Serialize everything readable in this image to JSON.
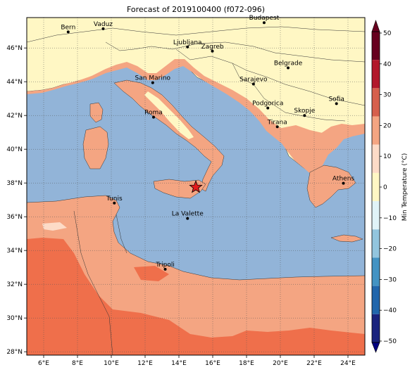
{
  "title": "Forecast of 2019100400 (f072-096)",
  "map": {
    "lon_range": [
      5,
      25
    ],
    "lat_range": [
      27.8,
      47.8
    ],
    "lon_ticks": [
      "6°E",
      "8°E",
      "10°E",
      "12°E",
      "14°E",
      "16°E",
      "18°E",
      "20°E",
      "22°E",
      "24°E"
    ],
    "lat_ticks": [
      "28°N",
      "30°N",
      "32°N",
      "34°N",
      "36°N",
      "38°N",
      "40°N",
      "42°N",
      "44°N",
      "46°N"
    ],
    "grid": true,
    "marker": {
      "name": "star",
      "lon": 15.0,
      "lat": 37.75,
      "color": "#e31a1c"
    },
    "cities": [
      {
        "name": "Bern",
        "lon": 7.45,
        "lat": 46.95
      },
      {
        "name": "Vaduz",
        "lon": 9.52,
        "lat": 47.14
      },
      {
        "name": "Budapest",
        "lon": 19.04,
        "lat": 47.5
      },
      {
        "name": "Ljubljana",
        "lon": 14.51,
        "lat": 46.06
      },
      {
        "name": "Zagreb",
        "lon": 15.98,
        "lat": 45.81
      },
      {
        "name": "Belgrade",
        "lon": 20.46,
        "lat": 44.82
      },
      {
        "name": "San Marino",
        "lon": 12.45,
        "lat": 43.94
      },
      {
        "name": "Sarajevo",
        "lon": 18.41,
        "lat": 43.86
      },
      {
        "name": "Sofia",
        "lon": 23.32,
        "lat": 42.7
      },
      {
        "name": "Podgorica",
        "lon": 19.26,
        "lat": 42.44
      },
      {
        "name": "Skopje",
        "lon": 21.43,
        "lat": 42.0
      },
      {
        "name": "Roma",
        "lon": 12.5,
        "lat": 41.9
      },
      {
        "name": "Tirana",
        "lon": 19.82,
        "lat": 41.33
      },
      {
        "name": "Athens",
        "lon": 23.73,
        "lat": 37.98
      },
      {
        "name": "Tunis",
        "lon": 10.18,
        "lat": 36.81
      },
      {
        "name": "La Valette",
        "lon": 14.51,
        "lat": 35.9
      },
      {
        "name": "Tripoli",
        "lon": 13.19,
        "lat": 32.89
      }
    ]
  },
  "colorbar": {
    "label": "Min Temperature (°C)",
    "ticks": [
      "50",
      "40",
      "30",
      "20",
      "10",
      "0",
      "−10",
      "−20",
      "−30",
      "−40",
      "−50"
    ],
    "colors": [
      "#67001f",
      "#b2182b",
      "#d6604d",
      "#f4a582",
      "#fddbc7",
      "#fff7c4",
      "#e0f3f8",
      "#92c5de",
      "#4393c3",
      "#2166ac",
      "#1a237e"
    ]
  }
}
